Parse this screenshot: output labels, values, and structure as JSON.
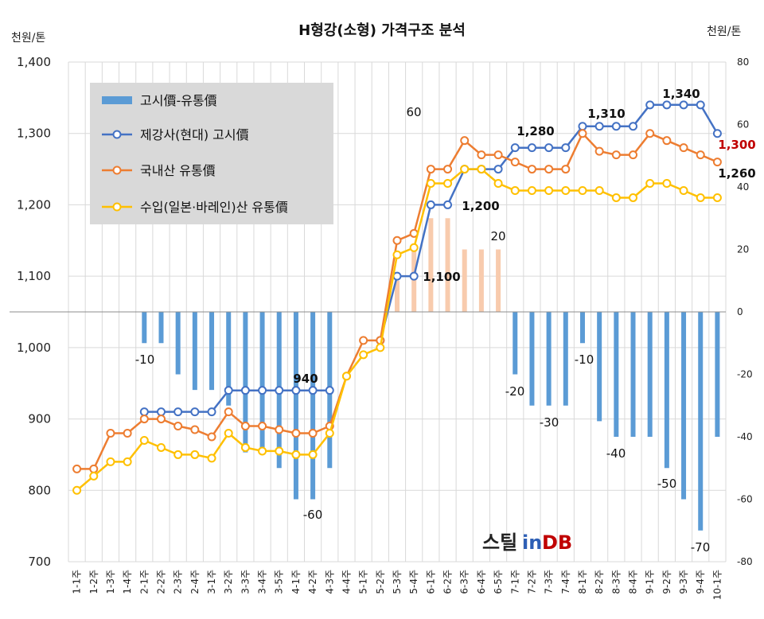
{
  "chart_data": {
    "type": "bar+line",
    "title": "H형강(소형) 가격구조 분석",
    "left_unit": "천원/톤",
    "right_unit": "천원/톤",
    "ylim_left": [
      700,
      1400
    ],
    "ylim_right": [
      -80,
      80
    ],
    "yticks_left": [
      "700",
      "800",
      "900",
      "1,000",
      "1,100",
      "1,200",
      "1,300",
      "1,400"
    ],
    "yticks_right": [
      "-80",
      "-60",
      "-40",
      "-20",
      "0",
      "20",
      "40",
      "60",
      "80"
    ],
    "categories": [
      "1-1주",
      "1-2주",
      "1-3주",
      "1-4주",
      "2-1주",
      "2-2주",
      "2-3주",
      "2-4주",
      "3-1주",
      "3-2주",
      "3-3주",
      "3-4주",
      "3-5주",
      "4-1주",
      "4-2주",
      "4-3주",
      "4-4주",
      "5-1주",
      "5-2주",
      "5-3주",
      "5-4주",
      "6-1주",
      "6-2주",
      "6-3주",
      "6-4주",
      "6-5주",
      "7-1주",
      "7-2주",
      "7-3주",
      "7-4주",
      "8-1주",
      "8-2주",
      "8-3주",
      "8-4주",
      "9-1주",
      "9-2주",
      "9-3주",
      "9-4주",
      "10-1주"
    ],
    "series": [
      {
        "name": "고시價-유통價",
        "type": "bar",
        "axis": "right",
        "color": "#5b9bd5",
        "positive_color": "#f8cbad",
        "values": [
          0,
          0,
          0,
          0,
          -10,
          -10,
          -20,
          -25,
          -25,
          -30,
          -45,
          -45,
          -50,
          -60,
          -60,
          -50,
          0,
          0,
          0,
          10,
          20,
          30,
          30,
          20,
          20,
          20,
          -20,
          -30,
          -30,
          -30,
          -10,
          -35,
          -40,
          -40,
          -40,
          -50,
          -60,
          -70,
          -40
        ]
      },
      {
        "name": "제강사(현대) 고시價",
        "type": "line",
        "axis": "left",
        "color": "#4472c4",
        "values": [
          null,
          null,
          null,
          null,
          910,
          910,
          910,
          910,
          910,
          940,
          940,
          940,
          940,
          940,
          940,
          940,
          null,
          null,
          1010,
          1100,
          1100,
          1200,
          1200,
          1250,
          1250,
          1250,
          1280,
          1280,
          1280,
          1280,
          1310,
          1310,
          1310,
          1310,
          1340,
          1340,
          1340,
          1340,
          1300
        ]
      },
      {
        "name": "국내산 유통價",
        "type": "line",
        "axis": "left",
        "color": "#ed7d31",
        "values": [
          830,
          830,
          880,
          880,
          900,
          900,
          890,
          885,
          875,
          910,
          890,
          890,
          885,
          880,
          880,
          890,
          960,
          1010,
          1010,
          1150,
          1160,
          1250,
          1250,
          1290,
          1270,
          1270,
          1260,
          1250,
          1250,
          1250,
          1300,
          1275,
          1270,
          1270,
          1300,
          1290,
          1280,
          1270,
          1260
        ]
      },
      {
        "name": "수입(일본·바레인)산 유통價",
        "type": "line",
        "axis": "left",
        "color": "#ffc000",
        "values": [
          800,
          820,
          840,
          840,
          870,
          860,
          850,
          850,
          845,
          880,
          860,
          855,
          855,
          850,
          850,
          880,
          960,
          990,
          1000,
          1130,
          1140,
          1230,
          1230,
          1250,
          1250,
          1230,
          1220,
          1220,
          1220,
          1220,
          1220,
          1220,
          1210,
          1210,
          1230,
          1230,
          1220,
          1210,
          1210
        ]
      }
    ],
    "annotations": {
      "bar": [
        "-10",
        "60",
        "20",
        "-60",
        "-20",
        "-30",
        "-10",
        "-40",
        "-50",
        "-70"
      ],
      "line": [
        "940",
        "1,100",
        "1,200",
        "1,280",
        "1,310",
        "1,340",
        "1,260"
      ],
      "line_red": "1,300"
    },
    "legend_position": "top-left"
  },
  "watermark": {
    "text_a": "스틸",
    "text_b": "in",
    "text_c": "DB"
  }
}
